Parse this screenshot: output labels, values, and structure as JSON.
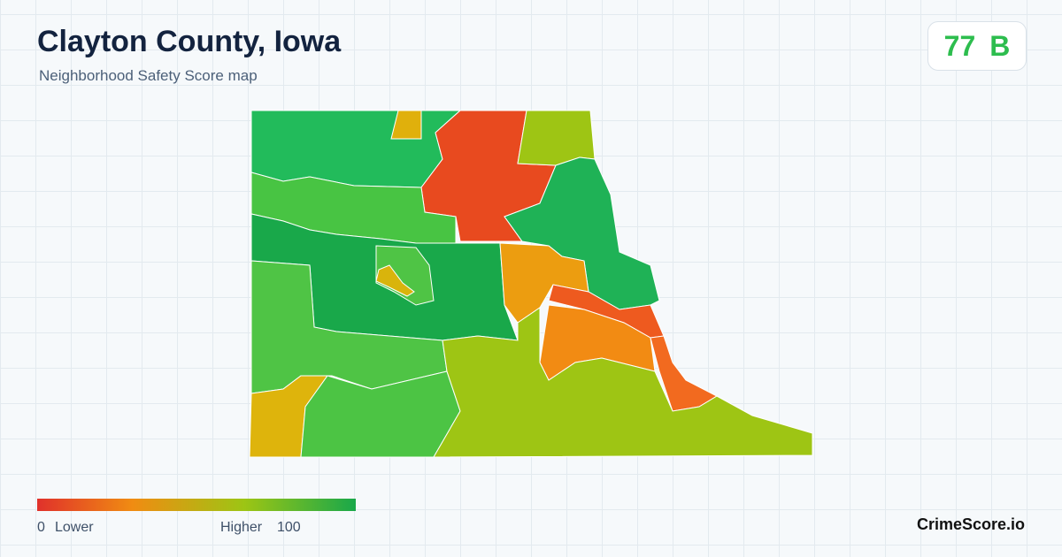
{
  "header": {
    "title": "Clayton County, Iowa",
    "subtitle": "Neighborhood Safety Score map"
  },
  "score": {
    "value": 77,
    "grade": "B"
  },
  "legend": {
    "min": 0,
    "min_label": "Lower",
    "max_label": "Higher",
    "max": 100
  },
  "brand": "CrimeScore.io"
}
